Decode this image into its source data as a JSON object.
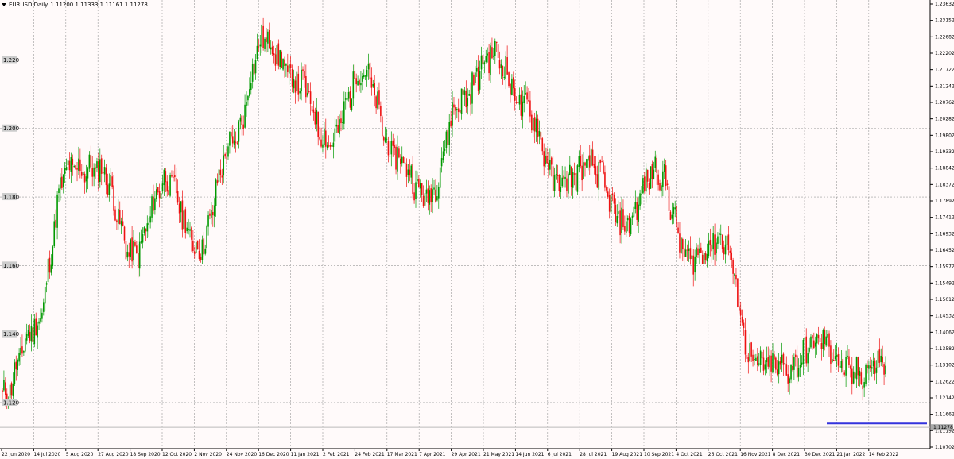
{
  "window": {
    "title": "EURUSD,Daily",
    "ohlc": "1.11200 1.11333 1.11161 1.11278"
  },
  "price_axis": {
    "labels": [
      "1.23632",
      "1.23152",
      "1.22682",
      "1.22202",
      "1.21722",
      "1.21242",
      "1.20762",
      "1.20282",
      "1.19802",
      "1.19332",
      "1.18842",
      "1.18372",
      "1.17892",
      "1.17412",
      "1.16932",
      "1.16452",
      "1.15972",
      "1.15492",
      "1.15012",
      "1.14532",
      "1.14062",
      "1.13582",
      "1.13102",
      "1.12622",
      "1.12142",
      "1.11662",
      "1.11192",
      "1.10702"
    ],
    "current_price": "1.11278"
  },
  "levels": [
    "1.220",
    "1.200",
    "1.180",
    "1.160",
    "1.140",
    "1.120"
  ],
  "date_axis": {
    "labels": [
      "22 Jun 2020",
      "14 Jul 2020",
      "5 Aug 2020",
      "27 Aug 2020",
      "18 Sep 2020",
      "12 Oct 2020",
      "2 Nov 2020",
      "24 Nov 2020",
      "16 Dec 2020",
      "11 Jan 2021",
      "2 Feb 2021",
      "24 Feb 2021",
      "17 Mar 2021",
      "7 Apr 2021",
      "29 Apr 2021",
      "21 May 2021",
      "14 Jun 2021",
      "6 Jul 2021",
      "28 Jul 2021",
      "19 Aug 2021",
      "10 Sep 2021",
      "4 Oct 2021",
      "26 Oct 2021",
      "16 Nov 2021",
      "8 Dec 2021",
      "30 Dec 2021",
      "21 Jan 2022",
      "14 Feb 2022"
    ]
  },
  "colors": {
    "background": "#fffafa",
    "bull": "#009900",
    "bear": "#ee1111",
    "grid": "#999999",
    "support_line": "#3333dd",
    "price_tag": "#aaaaaa"
  },
  "chart_data": {
    "type": "candlestick",
    "symbol": "EURUSD",
    "timeframe": "Daily",
    "ylim": [
      1.10702,
      1.23632
    ],
    "horizontal_line": 1.1139,
    "series": [
      {
        "name": "EURUSD",
        "x": [
          "22 Jun 2020",
          "14 Jul 2020",
          "5 Aug 2020",
          "27 Aug 2020",
          "18 Sep 2020",
          "12 Oct 2020",
          "2 Nov 2020",
          "24 Nov 2020",
          "16 Dec 2020",
          "11 Jan 2021",
          "2 Feb 2021",
          "24 Feb 2021",
          "17 Mar 2021",
          "7 Apr 2021",
          "29 Apr 2021",
          "21 May 2021",
          "14 Jun 2021",
          "6 Jul 2021",
          "28 Jul 2021",
          "19 Aug 2021",
          "10 Sep 2021",
          "4 Oct 2021",
          "26 Oct 2021",
          "16 Nov 2021",
          "8 Dec 2021",
          "30 Dec 2021",
          "21 Jan 2022",
          "14 Feb 2022"
        ],
        "values": [
          1.122,
          1.142,
          1.188,
          1.188,
          1.163,
          1.185,
          1.165,
          1.195,
          1.226,
          1.214,
          1.196,
          1.217,
          1.192,
          1.18,
          1.208,
          1.222,
          1.206,
          1.184,
          1.189,
          1.172,
          1.188,
          1.162,
          1.168,
          1.131,
          1.13,
          1.138,
          1.128,
          1.132
        ]
      }
    ]
  }
}
